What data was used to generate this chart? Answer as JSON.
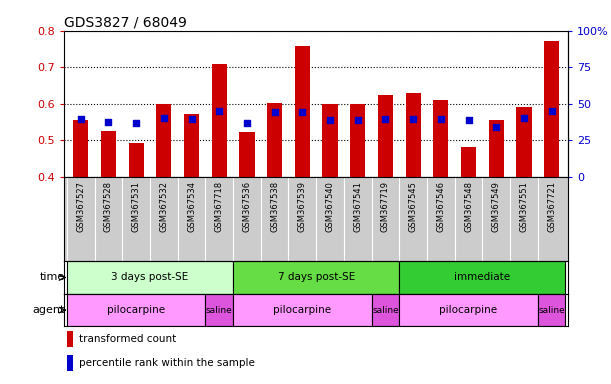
{
  "title": "GDS3827 / 68049",
  "samples": [
    "GSM367527",
    "GSM367528",
    "GSM367531",
    "GSM367532",
    "GSM367534",
    "GSM367718",
    "GSM367536",
    "GSM367538",
    "GSM367539",
    "GSM367540",
    "GSM367541",
    "GSM367719",
    "GSM367545",
    "GSM367546",
    "GSM367548",
    "GSM367549",
    "GSM367551",
    "GSM367721"
  ],
  "red_values": [
    0.555,
    0.525,
    0.493,
    0.6,
    0.572,
    0.71,
    0.522,
    0.603,
    0.757,
    0.6,
    0.6,
    0.625,
    0.628,
    0.61,
    0.481,
    0.555,
    0.591,
    0.773
  ],
  "blue_values": [
    0.558,
    0.55,
    0.548,
    0.562,
    0.558,
    0.58,
    0.548,
    0.577,
    0.578,
    0.554,
    0.556,
    0.558,
    0.557,
    0.558,
    0.554,
    0.536,
    0.56,
    0.58
  ],
  "ylim_left": [
    0.4,
    0.8
  ],
  "ylim_right": [
    0,
    100
  ],
  "yticks_left": [
    0.4,
    0.5,
    0.6,
    0.7,
    0.8
  ],
  "yticks_right": [
    0,
    25,
    50,
    75,
    100
  ],
  "bar_color": "#cc0000",
  "dot_color": "#0000cc",
  "bar_width": 0.55,
  "time_groups": [
    {
      "label": "3 days post-SE",
      "start": 0,
      "end": 5,
      "color": "#ccffcc"
    },
    {
      "label": "7 days post-SE",
      "start": 6,
      "end": 11,
      "color": "#66dd44"
    },
    {
      "label": "immediate",
      "start": 12,
      "end": 17,
      "color": "#33cc33"
    }
  ],
  "agent_groups": [
    {
      "label": "pilocarpine",
      "start": 0,
      "end": 4,
      "color": "#ff99ff"
    },
    {
      "label": "saline",
      "start": 5,
      "end": 5,
      "color": "#dd55dd"
    },
    {
      "label": "pilocarpine",
      "start": 6,
      "end": 10,
      "color": "#ff99ff"
    },
    {
      "label": "saline",
      "start": 11,
      "end": 11,
      "color": "#dd55dd"
    },
    {
      "label": "pilocarpine",
      "start": 12,
      "end": 16,
      "color": "#ff99ff"
    },
    {
      "label": "saline",
      "start": 17,
      "end": 17,
      "color": "#dd55dd"
    }
  ],
  "legend_red": "transformed count",
  "legend_blue": "percentile rank within the sample",
  "xlabel_time": "time",
  "xlabel_agent": "agent",
  "bg_color": "#ffffff",
  "tick_label_color_left": "#cc0000",
  "tick_label_color_right": "#0000cc",
  "xticklabel_bg": "#cccccc",
  "title_fontsize": 10,
  "tick_fontsize": 8,
  "sample_fontsize": 6,
  "row_fontsize": 7.5
}
